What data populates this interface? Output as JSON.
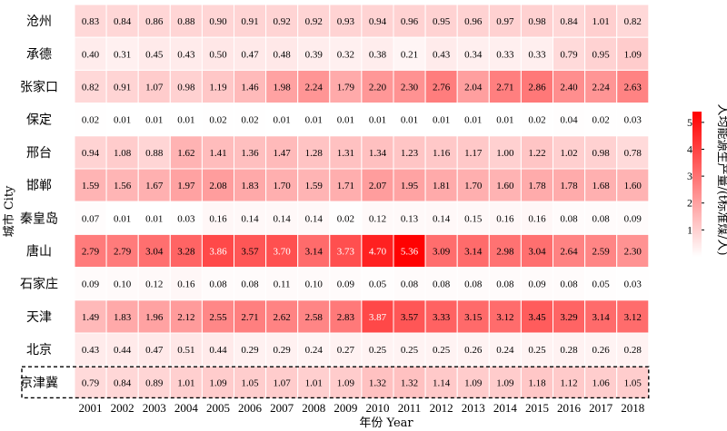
{
  "chart_data": {
    "type": "heatmap",
    "xlabel": "年份 Year",
    "ylabel": "城市 City",
    "colorbar_label": "人均能源生产量/(t标准煤/人)",
    "colorbar_ticks": [
      1,
      2,
      3,
      4,
      5
    ],
    "colorbar_range": [
      0,
      5.4
    ],
    "color_low": "#ffffff",
    "color_high": "#ff0000",
    "highlight_row": "京津冀",
    "x": [
      "2001",
      "2002",
      "2003",
      "2004",
      "2005",
      "2006",
      "2007",
      "2008",
      "2009",
      "2010",
      "2011",
      "2012",
      "2013",
      "2014",
      "2015",
      "2016",
      "2017",
      "2018"
    ],
    "rows": [
      {
        "name": "沧州",
        "values": [
          "0.83",
          "0.84",
          "0.86",
          "0.88",
          "0.90",
          "0.91",
          "0.92",
          "0.92",
          "0.93",
          "0.94",
          "0.96",
          "0.95",
          "0.96",
          "0.97",
          "0.98",
          "0.84",
          "1.01",
          "0.82"
        ]
      },
      {
        "name": "承德",
        "values": [
          "0.40",
          "0.31",
          "0.45",
          "0.43",
          "0.50",
          "0.47",
          "0.48",
          "0.39",
          "0.32",
          "0.38",
          "0.21",
          "0.43",
          "0.34",
          "0.33",
          "0.33",
          "0.79",
          "0.95",
          "1.09"
        ]
      },
      {
        "name": "张家口",
        "values": [
          "0.82",
          "0.91",
          "1.07",
          "0.98",
          "1.19",
          "1.46",
          "1.98",
          "2.24",
          "1.79",
          "2.20",
          "2.30",
          "2.76",
          "2.04",
          "2.71",
          "2.86",
          "2.40",
          "2.24",
          "2.63"
        ]
      },
      {
        "name": "保定",
        "values": [
          "0.02",
          "0.01",
          "0.01",
          "0.01",
          "0.02",
          "0.02",
          "0.01",
          "0.01",
          "0.01",
          "0.01",
          "0.01",
          "0.01",
          "0.01",
          "0.01",
          "0.02",
          "0.04",
          "0.02",
          "0.03"
        ]
      },
      {
        "name": "邢台",
        "values": [
          "0.94",
          "1.08",
          "0.88",
          "1.62",
          "1.41",
          "1.36",
          "1.47",
          "1.28",
          "1.31",
          "1.34",
          "1.23",
          "1.16",
          "1.17",
          "1.00",
          "1.22",
          "1.02",
          "0.98",
          "0.78"
        ]
      },
      {
        "name": "邯郸",
        "values": [
          "1.59",
          "1.56",
          "1.67",
          "1.97",
          "2.08",
          "1.83",
          "1.70",
          "1.59",
          "1.71",
          "2.07",
          "1.95",
          "1.81",
          "1.70",
          "1.60",
          "1.78",
          "1.78",
          "1.68",
          "1.60"
        ]
      },
      {
        "name": "秦皇岛",
        "values": [
          "0.07",
          "0.01",
          "0.01",
          "0.03",
          "0.16",
          "0.14",
          "0.14",
          "0.14",
          "0.02",
          "0.12",
          "0.13",
          "0.14",
          "0.15",
          "0.16",
          "0.16",
          "0.08",
          "0.08",
          "0.09"
        ]
      },
      {
        "name": "唐山",
        "values": [
          "2.79",
          "2.79",
          "3.04",
          "3.28",
          "3.86",
          "3.57",
          "3.70",
          "3.14",
          "3.73",
          "4.70",
          "5.36",
          "3.09",
          "3.14",
          "2.98",
          "3.04",
          "2.64",
          "2.59",
          "2.30"
        ]
      },
      {
        "name": "石家庄",
        "values": [
          "0.09",
          "0.10",
          "0.12",
          "0.16",
          "0.08",
          "0.08",
          "0.11",
          "0.10",
          "0.09",
          "0.05",
          "0.08",
          "0.08",
          "0.08",
          "0.08",
          "0.09",
          "0.08",
          "0.05",
          "0.03"
        ]
      },
      {
        "name": "天津",
        "values": [
          "1.49",
          "1.83",
          "1.96",
          "2.12",
          "2.55",
          "2.71",
          "2.62",
          "2.58",
          "2.83",
          "3.87",
          "3.57",
          "3.33",
          "3.15",
          "3.12",
          "3.45",
          "3.29",
          "3.14",
          "3.12"
        ]
      },
      {
        "name": "北京",
        "values": [
          "0.43",
          "0.44",
          "0.47",
          "0.51",
          "0.44",
          "0.29",
          "0.29",
          "0.24",
          "0.27",
          "0.25",
          "0.25",
          "0.25",
          "0.26",
          "0.24",
          "0.25",
          "0.28",
          "0.26",
          "0.28"
        ]
      },
      {
        "name": "京津冀",
        "values": [
          "0.79",
          "0.84",
          "0.89",
          "1.01",
          "1.09",
          "1.05",
          "1.07",
          "1.01",
          "1.09",
          "1.32",
          "1.32",
          "1.14",
          "1.09",
          "1.09",
          "1.18",
          "1.12",
          "1.06",
          "1.05"
        ]
      }
    ]
  }
}
